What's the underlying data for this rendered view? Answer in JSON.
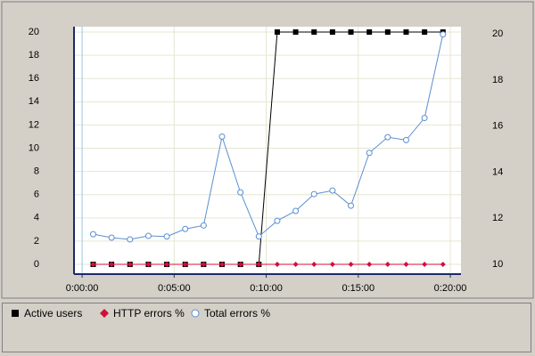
{
  "chart_data": {
    "type": "line",
    "x": [
      0.6,
      1.6,
      2.6,
      3.6,
      4.6,
      5.6,
      6.6,
      7.6,
      8.6,
      9.6,
      10.6,
      11.6,
      12.6,
      13.6,
      14.6,
      15.6,
      16.6,
      17.6,
      18.6,
      19.6
    ],
    "xlim": [
      -0.44,
      20.58
    ],
    "xticks": [
      {
        "value": 0,
        "label": "0:00:00"
      },
      {
        "value": 5,
        "label": "0:05:00"
      },
      {
        "value": 10,
        "label": "0:10:00"
      },
      {
        "value": 15,
        "label": "0:15:00"
      },
      {
        "value": 20,
        "label": "0:20:00"
      }
    ],
    "ylim": [
      -0.84,
      20.46
    ],
    "yticks": [
      0,
      2,
      4,
      6,
      8,
      10,
      12,
      14,
      16,
      18,
      20
    ],
    "y2lim": [
      9.58,
      20.31
    ],
    "y2ticks": [
      10,
      12,
      14,
      16,
      18,
      20
    ],
    "grid": true,
    "series": [
      {
        "name": "Active users",
        "color": "#000000",
        "marker": "square",
        "values": [
          0,
          0,
          0,
          0,
          0,
          0,
          0,
          0,
          0,
          0,
          20,
          20,
          20,
          20,
          20,
          20,
          20,
          20,
          20,
          20
        ]
      },
      {
        "name": "HTTP errors %",
        "color": "#d0103a",
        "marker": "diamond",
        "values": [
          0,
          0,
          0,
          0,
          0,
          0,
          0,
          0,
          0,
          0,
          0,
          0,
          0,
          0,
          0,
          0,
          0,
          0,
          0,
          0
        ]
      },
      {
        "name": "Total errors %",
        "color": "#5b8fd0",
        "marker": "circle",
        "values": [
          2.6,
          2.3,
          2.15,
          2.45,
          2.4,
          3.05,
          3.35,
          11.0,
          6.2,
          2.4,
          3.75,
          4.6,
          6.05,
          6.35,
          5.05,
          9.6,
          10.95,
          10.7,
          12.6,
          19.8
        ]
      }
    ]
  }
}
